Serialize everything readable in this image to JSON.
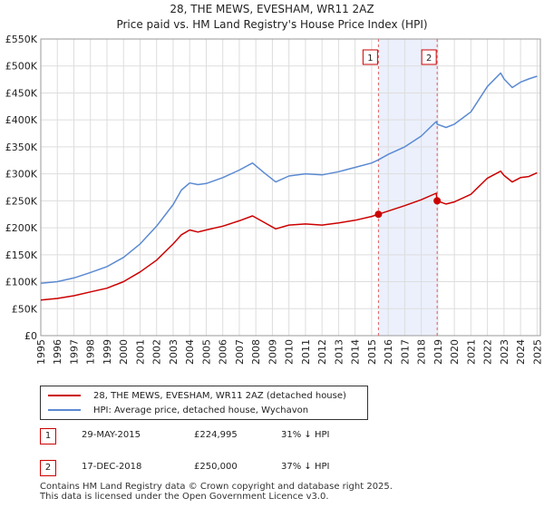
{
  "title": {
    "line1": "28, THE MEWS, EVESHAM, WR11 2AZ",
    "line2": "Price paid vs. HM Land Registry's House Price Index (HPI)"
  },
  "chart_data": {
    "type": "line",
    "title": "28, THE MEWS, EVESHAM, WR11 2AZ — Price paid vs. HM Land Registry's House Price Index (HPI)",
    "xlabel": "",
    "ylabel": "",
    "xlim": [
      1995,
      2025.2
    ],
    "ylim": [
      0,
      550000
    ],
    "x_ticks": [
      1995,
      1996,
      1997,
      1998,
      1999,
      2000,
      2001,
      2002,
      2003,
      2004,
      2005,
      2006,
      2007,
      2008,
      2009,
      2010,
      2011,
      2012,
      2013,
      2014,
      2015,
      2016,
      2017,
      2018,
      2019,
      2020,
      2021,
      2022,
      2023,
      2024,
      2025
    ],
    "y_ticks": [
      {
        "value": 0,
        "label": "£0"
      },
      {
        "value": 50000,
        "label": "£50K"
      },
      {
        "value": 100000,
        "label": "£100K"
      },
      {
        "value": 150000,
        "label": "£150K"
      },
      {
        "value": 200000,
        "label": "£200K"
      },
      {
        "value": 250000,
        "label": "£250K"
      },
      {
        "value": 300000,
        "label": "£300K"
      },
      {
        "value": 350000,
        "label": "£350K"
      },
      {
        "value": 400000,
        "label": "£400K"
      },
      {
        "value": 450000,
        "label": "£450K"
      },
      {
        "value": 500000,
        "label": "£500K"
      },
      {
        "value": 550000,
        "label": "£550K"
      }
    ],
    "grid": true,
    "shaded_region": {
      "from": 2015.41,
      "to": 2018.96,
      "color": "#dde6fa"
    },
    "series": [
      {
        "name": "28, THE MEWS, EVESHAM, WR11 2AZ (detached house)",
        "color": "#cc0000",
        "x": [
          1995.0,
          1996.0,
          1997.0,
          1998.0,
          1999.0,
          2000.0,
          2001.0,
          2002.0,
          2003.0,
          2003.5,
          2004.0,
          2004.5,
          2005.0,
          2006.0,
          2007.0,
          2007.8,
          2008.5,
          2009.2,
          2010.0,
          2011.0,
          2012.0,
          2013.0,
          2014.0,
          2015.0,
          2015.41,
          2016.0,
          2017.0,
          2018.0,
          2018.9,
          2018.96,
          2019.5,
          2020.0,
          2021.0,
          2022.0,
          2022.8,
          2023.0,
          2023.5,
          2024.0,
          2024.5,
          2025.0
        ],
        "y": [
          66000,
          69000,
          74000,
          81000,
          88000,
          100000,
          118000,
          140000,
          170000,
          187000,
          196000,
          192000,
          196000,
          203000,
          213000,
          222000,
          210000,
          198000,
          205000,
          207000,
          205000,
          209000,
          214000,
          221000,
          224995,
          231000,
          241000,
          252000,
          264000,
          250000,
          244000,
          248000,
          262000,
          292000,
          305000,
          297000,
          285000,
          293000,
          295000,
          302000
        ]
      },
      {
        "name": "HPI: Average price, detached house, Wychavon",
        "color": "#5b8ad2",
        "x": [
          1995.0,
          1996.0,
          1997.0,
          1998.0,
          1999.0,
          2000.0,
          2001.0,
          2002.0,
          2003.0,
          2003.5,
          2004.0,
          2004.5,
          2005.0,
          2006.0,
          2007.0,
          2007.8,
          2008.5,
          2009.2,
          2010.0,
          2011.0,
          2012.0,
          2013.0,
          2014.0,
          2015.0,
          2015.41,
          2016.0,
          2017.0,
          2018.0,
          2018.9,
          2018.96,
          2019.5,
          2020.0,
          2021.0,
          2022.0,
          2022.8,
          2023.0,
          2023.5,
          2024.0,
          2024.5,
          2025.0
        ],
        "y": [
          97000,
          100000,
          107000,
          117000,
          128000,
          145000,
          170000,
          203000,
          243000,
          270000,
          283000,
          280000,
          282000,
          293000,
          307000,
          320000,
          302000,
          285000,
          296000,
          300000,
          298000,
          304000,
          312000,
          320000,
          326000,
          336000,
          350000,
          370000,
          397000,
          392000,
          386000,
          392000,
          415000,
          462000,
          487000,
          476000,
          460000,
          470000,
          476000,
          481000
        ]
      }
    ],
    "markers": [
      {
        "label": "1",
        "x": 2015.41,
        "y": 224995
      },
      {
        "label": "2",
        "x": 2018.96,
        "y": 250000
      }
    ]
  },
  "legend": {
    "items": [
      {
        "label": "28, THE MEWS, EVESHAM, WR11 2AZ (detached house)",
        "color": "#cc0000"
      },
      {
        "label": "HPI: Average price, detached house, Wychavon",
        "color": "#5b8ad2"
      }
    ]
  },
  "sales": [
    {
      "num": "1",
      "date": "29-MAY-2015",
      "price": "£224,995",
      "hpi": "31% ↓ HPI"
    },
    {
      "num": "2",
      "date": "17-DEC-2018",
      "price": "£250,000",
      "hpi": "37% ↓ HPI"
    }
  ],
  "footer": {
    "line1": "Contains HM Land Registry data © Crown copyright and database right 2025.",
    "line2": "This data is licensed under the Open Government Licence v3.0."
  }
}
